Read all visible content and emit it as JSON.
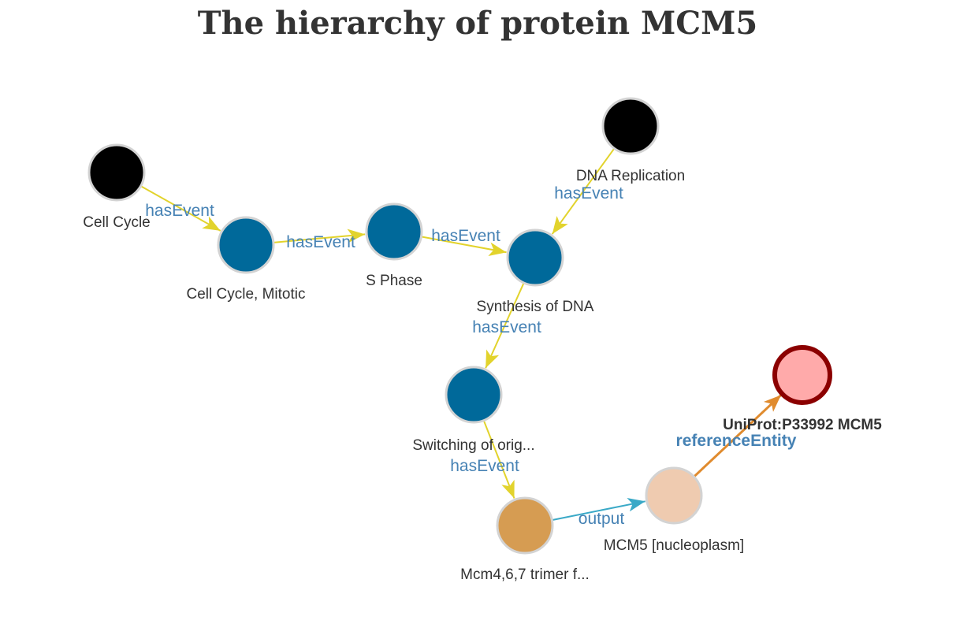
{
  "title": "The hierarchy of protein MCM5",
  "colors": {
    "root_node": "#000000",
    "event_node": "#00699a",
    "complex_node": "#d69c52",
    "entity_node": "#efcbb0",
    "protein_node": "#ffaaaa",
    "protein_stroke": "#8b0000",
    "node_stroke": "#d3d3d3",
    "hasEvent_edge": "#e2d32c",
    "output_edge": "#3aa9c7",
    "referenceEntity_edge": "#e08b2e",
    "edge_label": "#4682b4"
  },
  "nodes": [
    {
      "id": "cell_cycle",
      "label": "Cell Cycle",
      "type": "root_node"
    },
    {
      "id": "cell_cycle_mitotic",
      "label": "Cell Cycle, Mitotic",
      "type": "event_node"
    },
    {
      "id": "s_phase",
      "label": "S Phase",
      "type": "event_node"
    },
    {
      "id": "dna_replication",
      "label": "DNA Replication",
      "type": "root_node"
    },
    {
      "id": "synthesis_of_dna",
      "label": "Synthesis of DNA",
      "type": "event_node"
    },
    {
      "id": "switching",
      "label": "Switching of orig...",
      "type": "event_node"
    },
    {
      "id": "mcm467",
      "label": "Mcm4,6,7 trimer f...",
      "type": "complex_node"
    },
    {
      "id": "mcm5_nucleoplasm",
      "label": "MCM5 [nucleoplasm]",
      "type": "entity_node"
    },
    {
      "id": "uniprot",
      "label": "UniProt:P33992 MCM5",
      "type": "protein_node"
    }
  ],
  "edges": [
    {
      "from": "cell_cycle",
      "to": "cell_cycle_mitotic",
      "label": "hasEvent",
      "kind": "hasEvent_edge"
    },
    {
      "from": "cell_cycle_mitotic",
      "to": "s_phase",
      "label": "hasEvent",
      "kind": "hasEvent_edge"
    },
    {
      "from": "s_phase",
      "to": "synthesis_of_dna",
      "label": "hasEvent",
      "kind": "hasEvent_edge"
    },
    {
      "from": "dna_replication",
      "to": "synthesis_of_dna",
      "label": "hasEvent",
      "kind": "hasEvent_edge"
    },
    {
      "from": "synthesis_of_dna",
      "to": "switching",
      "label": "hasEvent",
      "kind": "hasEvent_edge"
    },
    {
      "from": "switching",
      "to": "mcm467",
      "label": "hasEvent",
      "kind": "hasEvent_edge"
    },
    {
      "from": "mcm467",
      "to": "mcm5_nucleoplasm",
      "label": "output",
      "kind": "output_edge"
    },
    {
      "from": "mcm5_nucleoplasm",
      "to": "uniprot",
      "label": "referenceEntity",
      "kind": "referenceEntity_edge"
    }
  ]
}
